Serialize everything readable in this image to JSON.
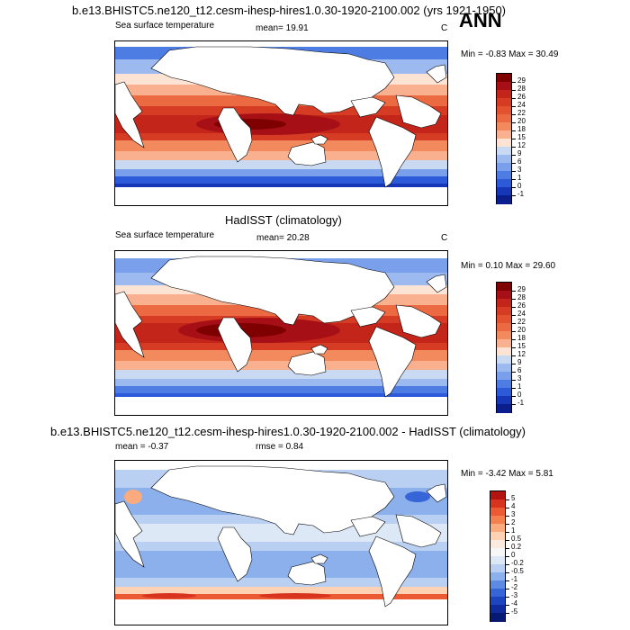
{
  "panel1": {
    "title": "b.e13.BHISTC5.ne120_t12.cesm-ihesp-hires1.0.30-1920-2100.002 (yrs 1921-1950)",
    "season": "ANN",
    "left_label": "Sea surface temperature",
    "mean_label": "mean=  19.91",
    "units": "C",
    "minmax": "Min =  -0.83 Max =  30.49",
    "colorbar": {
      "labels": [
        "29",
        "28",
        "26",
        "24",
        "22",
        "20",
        "18",
        "15",
        "12",
        "9",
        "6",
        "3",
        "1",
        "0",
        "-1"
      ],
      "colors": [
        "#7f0000",
        "#a50f15",
        "#c4251a",
        "#d63b24",
        "#e2522f",
        "#ec6a42",
        "#f38a5e",
        "#f9b08e",
        "#fde3d3",
        "#c9d9f2",
        "#9cbaf0",
        "#7aa0eb",
        "#4d7de3",
        "#2c5ad8",
        "#1637b8",
        "#0a1d8c"
      ]
    }
  },
  "panel2": {
    "title": "HadISST (climatology)",
    "left_label": "Sea surface temperature",
    "mean_label": "mean=  20.28",
    "units": "C",
    "minmax": "Min =  0.10 Max =  29.60",
    "colorbar": {
      "labels": [
        "29",
        "28",
        "26",
        "24",
        "22",
        "20",
        "18",
        "15",
        "12",
        "9",
        "6",
        "3",
        "1",
        "0",
        "-1"
      ],
      "colors": [
        "#7f0000",
        "#a50f15",
        "#c4251a",
        "#d63b24",
        "#e2522f",
        "#ec6a42",
        "#f38a5e",
        "#f9b08e",
        "#fde3d3",
        "#c9d9f2",
        "#9cbaf0",
        "#7aa0eb",
        "#4d7de3",
        "#2c5ad8",
        "#1637b8",
        "#0a1d8c"
      ]
    }
  },
  "panel3": {
    "title": "b.e13.BHISTC5.ne120_t12.cesm-ihesp-hires1.0.30-1920-2100.002 - HadISST (climatology)",
    "mean_label": "mean = -0.37",
    "rmse_label": "rmse =   0.84",
    "minmax": "Min =  -3.42 Max =   5.81",
    "colorbar": {
      "labels": [
        "5",
        "4",
        "3",
        "2",
        "1",
        "0.5",
        "0.2",
        "0",
        "-0.2",
        "-0.5",
        "-1",
        "-2",
        "-3",
        "-4",
        "-5"
      ],
      "colors": [
        "#b2140f",
        "#d8331f",
        "#ec5a33",
        "#f5804f",
        "#fbab7e",
        "#fdd1b4",
        "#fbeade",
        "#f7f7f7",
        "#dde8f7",
        "#b9d0f2",
        "#8cb0ec",
        "#5e8be2",
        "#3565d6",
        "#1c45bf",
        "#0f2b9e",
        "#071a73"
      ]
    }
  }
}
